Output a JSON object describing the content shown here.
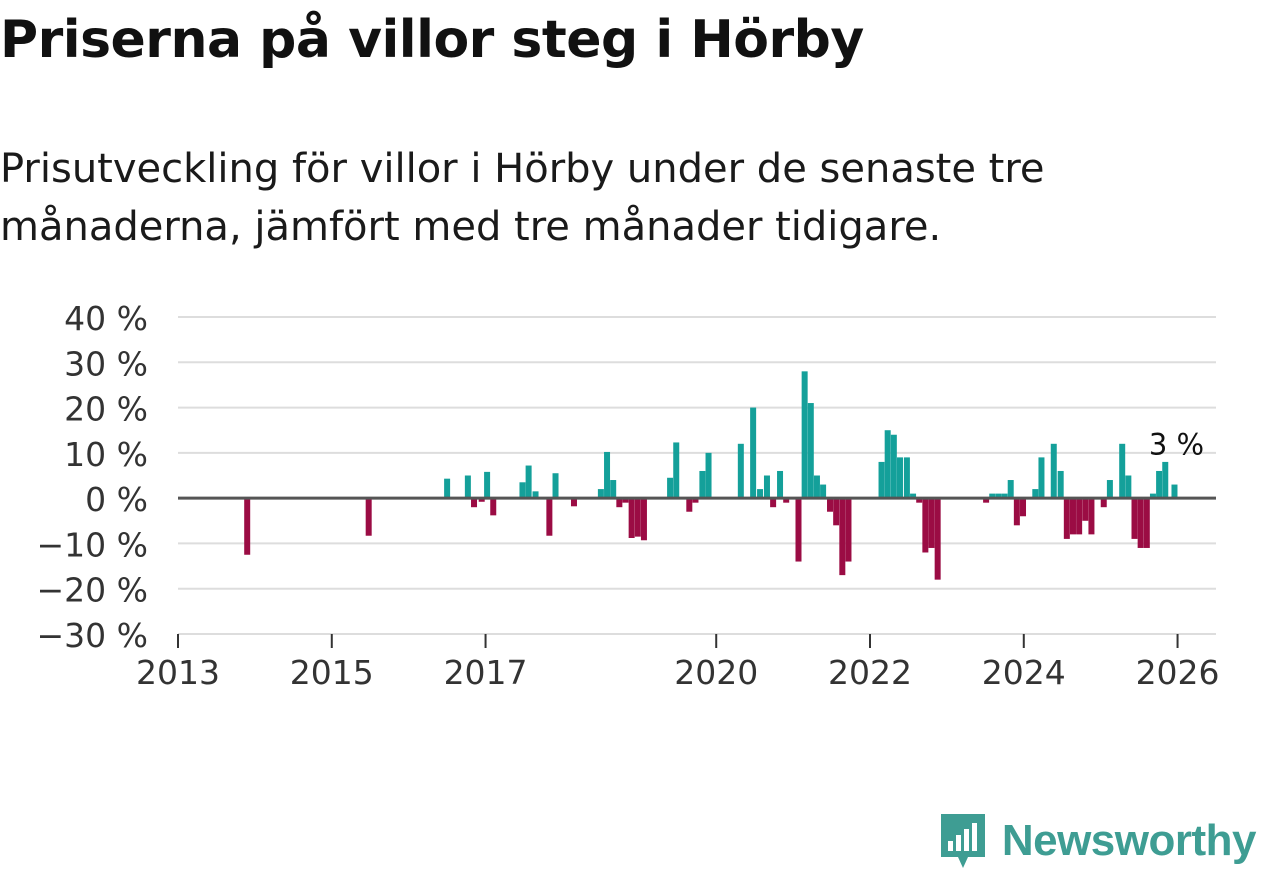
{
  "title": "Priserna på villor steg i Hörby",
  "subtitle": "Prisutveckling för villor i Hörby under de senaste tre månaderna, jämfört med tre månader tidigare.",
  "brand": {
    "name": "Newsworthy",
    "color": "#3e9d93"
  },
  "colors": {
    "positive": "#14a09a",
    "negative": "#9b0c44",
    "grid": "#dddddd",
    "zero": "#555555"
  },
  "chart_data": {
    "type": "bar",
    "title": "Priserna på villor steg i Hörby",
    "xlabel": "",
    "ylabel": "",
    "ylim": [
      -30,
      40
    ],
    "xlim": [
      2013.0,
      2026.5
    ],
    "y_ticks": [
      -30,
      -20,
      -10,
      0,
      10,
      20,
      30,
      40
    ],
    "y_tick_labels": [
      "−30 %",
      "−20 %",
      "−10 %",
      "0 %",
      "10 %",
      "20 %",
      "30 %",
      "40 %"
    ],
    "x_ticks": [
      2013,
      2015,
      2017,
      2020,
      2022,
      2024,
      2026
    ],
    "x_tick_labels": [
      "2013",
      "2015",
      "2017",
      "2020",
      "2022",
      "2024",
      "2026"
    ],
    "grid": true,
    "annotation": {
      "text": "3 %",
      "x": 2025.96,
      "y": 3
    },
    "points": [
      {
        "x": 2013.9,
        "y": -12.5
      },
      {
        "x": 2015.48,
        "y": -8.3
      },
      {
        "x": 2016.5,
        "y": 4.3
      },
      {
        "x": 2016.77,
        "y": 5.0
      },
      {
        "x": 2016.85,
        "y": -2.0
      },
      {
        "x": 2016.95,
        "y": -0.8
      },
      {
        "x": 2017.02,
        "y": 5.8
      },
      {
        "x": 2017.1,
        "y": -3.8
      },
      {
        "x": 2017.48,
        "y": 3.5
      },
      {
        "x": 2017.56,
        "y": 7.2
      },
      {
        "x": 2017.65,
        "y": 1.5
      },
      {
        "x": 2017.83,
        "y": -8.3
      },
      {
        "x": 2017.91,
        "y": 5.5
      },
      {
        "x": 2018.15,
        "y": -1.8
      },
      {
        "x": 2018.5,
        "y": 2.0
      },
      {
        "x": 2018.58,
        "y": 10.2
      },
      {
        "x": 2018.66,
        "y": 4.0
      },
      {
        "x": 2018.74,
        "y": -2.0
      },
      {
        "x": 2018.82,
        "y": -1.0
      },
      {
        "x": 2018.9,
        "y": -8.8
      },
      {
        "x": 2018.98,
        "y": -8.5
      },
      {
        "x": 2019.06,
        "y": -9.3
      },
      {
        "x": 2019.4,
        "y": 4.5
      },
      {
        "x": 2019.48,
        "y": 12.3
      },
      {
        "x": 2019.65,
        "y": -3.0
      },
      {
        "x": 2019.73,
        "y": -1.0
      },
      {
        "x": 2019.82,
        "y": 6.0
      },
      {
        "x": 2019.9,
        "y": 10.0
      },
      {
        "x": 2020.32,
        "y": 12.0
      },
      {
        "x": 2020.48,
        "y": 20.0
      },
      {
        "x": 2020.57,
        "y": 2.0
      },
      {
        "x": 2020.66,
        "y": 5.0
      },
      {
        "x": 2020.74,
        "y": -2.0
      },
      {
        "x": 2020.83,
        "y": 6.0
      },
      {
        "x": 2020.91,
        "y": -1.0
      },
      {
        "x": 2021.15,
        "y": 28.0
      },
      {
        "x": 2021.23,
        "y": 21.0
      },
      {
        "x": 2021.07,
        "y": -14.0
      },
      {
        "x": 2021.31,
        "y": 5.0
      },
      {
        "x": 2021.39,
        "y": 3.0
      },
      {
        "x": 2021.48,
        "y": -3.0
      },
      {
        "x": 2021.56,
        "y": -6.0
      },
      {
        "x": 2021.64,
        "y": -17.0
      },
      {
        "x": 2021.72,
        "y": -14.0
      },
      {
        "x": 2022.15,
        "y": 8.0
      },
      {
        "x": 2022.23,
        "y": 15.0
      },
      {
        "x": 2022.31,
        "y": 14.0
      },
      {
        "x": 2022.39,
        "y": 9.0
      },
      {
        "x": 2022.48,
        "y": 9.0
      },
      {
        "x": 2022.56,
        "y": 1.0
      },
      {
        "x": 2022.64,
        "y": -1.0
      },
      {
        "x": 2022.72,
        "y": -12.0
      },
      {
        "x": 2022.8,
        "y": -11.0
      },
      {
        "x": 2022.88,
        "y": -18.0
      },
      {
        "x": 2023.51,
        "y": -1.0
      },
      {
        "x": 2023.59,
        "y": 1.0
      },
      {
        "x": 2023.67,
        "y": 1.0
      },
      {
        "x": 2023.75,
        "y": 1.0
      },
      {
        "x": 2023.83,
        "y": 4.0
      },
      {
        "x": 2023.91,
        "y": -6.0
      },
      {
        "x": 2023.99,
        "y": -4.0
      },
      {
        "x": 2024.15,
        "y": 2.0
      },
      {
        "x": 2024.23,
        "y": 9.0
      },
      {
        "x": 2024.39,
        "y": 12.0
      },
      {
        "x": 2024.48,
        "y": 6.0
      },
      {
        "x": 2024.56,
        "y": -9.0
      },
      {
        "x": 2024.64,
        "y": -8.0
      },
      {
        "x": 2024.72,
        "y": -8.0
      },
      {
        "x": 2024.8,
        "y": -5.0
      },
      {
        "x": 2024.88,
        "y": -8.0
      },
      {
        "x": 2025.04,
        "y": -2.0
      },
      {
        "x": 2025.12,
        "y": 4.0
      },
      {
        "x": 2025.28,
        "y": 12.0
      },
      {
        "x": 2025.36,
        "y": 5.0
      },
      {
        "x": 2025.44,
        "y": -9.0
      },
      {
        "x": 2025.52,
        "y": -11.0
      },
      {
        "x": 2025.6,
        "y": -11.0
      },
      {
        "x": 2025.68,
        "y": 1.0
      },
      {
        "x": 2025.76,
        "y": 6.0
      },
      {
        "x": 2025.84,
        "y": 8.0
      },
      {
        "x": 2025.96,
        "y": 3.0
      }
    ]
  }
}
